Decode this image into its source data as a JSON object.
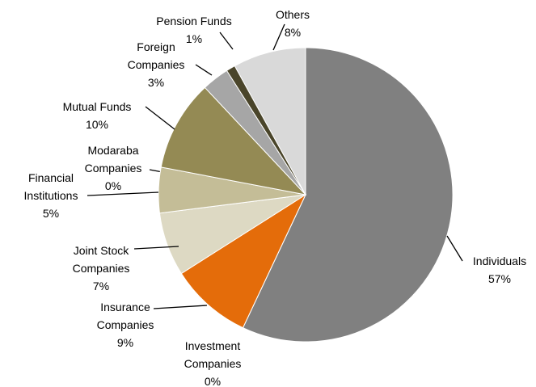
{
  "chart_data": {
    "type": "pie",
    "categories": [
      "Individuals",
      "Investment Companies",
      "Insurance Companies",
      "Joint Stock Companies",
      "Modaraba Companies",
      "Financial Institutions",
      "Mutual Funds",
      "Foreign Companies",
      "Pension Funds",
      "Others"
    ],
    "values": [
      57,
      0,
      9,
      7,
      0,
      5,
      10,
      3,
      1,
      8
    ],
    "value_labels": [
      "57%",
      "0%",
      "9%",
      "7%",
      "0%",
      "5%",
      "10%",
      "3%",
      "1%",
      "8%"
    ],
    "colors": [
      "#808080",
      "#7f7f7f",
      "#e46c0a",
      "#ddd9c3",
      "#b7b08a",
      "#c4bd97",
      "#948a54",
      "#a6a6a6",
      "#4a452a",
      "#d9d9d9"
    ]
  }
}
